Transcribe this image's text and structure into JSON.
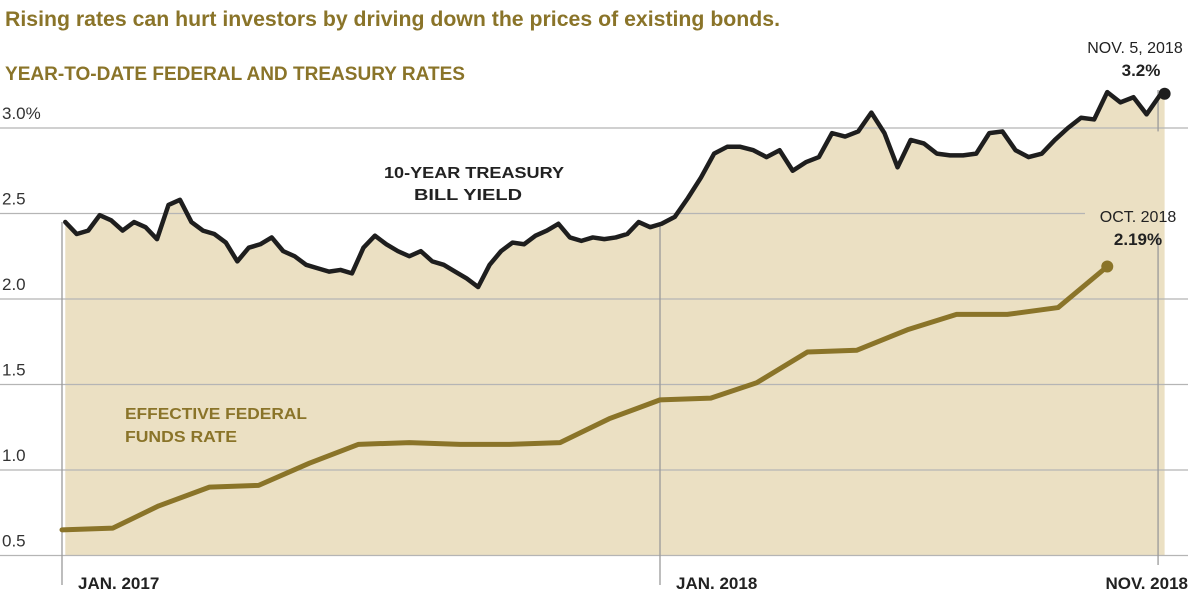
{
  "subtitle": "Rising rates can hurt investors by driving down the prices of existing bonds.",
  "chart_data": {
    "type": "line",
    "title": "YEAR-TO-DATE FEDERAL AND TREASURY RATES",
    "ylim": [
      0.5,
      3.3
    ],
    "yticks": [
      {
        "value": 3.0,
        "label": "3.0%"
      },
      {
        "value": 2.5,
        "label": "2.5"
      },
      {
        "value": 2.0,
        "label": "2.0"
      },
      {
        "value": 1.5,
        "label": "1.5"
      },
      {
        "value": 1.0,
        "label": "1.0"
      },
      {
        "value": 0.5,
        "label": "0.5"
      }
    ],
    "xticks": [
      {
        "date": "2017-01-01",
        "label": "JAN. 2017"
      },
      {
        "date": "2018-01-01",
        "label": "JAN. 2018"
      },
      {
        "date": "2018-11-01",
        "label": "NOV. 2018"
      }
    ],
    "grid": true,
    "colors": {
      "treasury": "#1e1e1e",
      "fed": "#8a7429",
      "fill": "#ebe0c3",
      "grid": "#b5b5b5"
    },
    "series": [
      {
        "name": "10-YEAR TREASURY BILL YIELD",
        "label_lines": [
          "10-YEAR TREASURY",
          "BILL YIELD"
        ],
        "filled": true,
        "dates": [
          "2017-01-03",
          "2017-01-10",
          "2017-01-17",
          "2017-01-24",
          "2017-01-31",
          "2017-02-07",
          "2017-02-14",
          "2017-02-21",
          "2017-02-28",
          "2017-03-07",
          "2017-03-14",
          "2017-03-21",
          "2017-03-28",
          "2017-04-04",
          "2017-04-11",
          "2017-04-18",
          "2017-04-25",
          "2017-05-02",
          "2017-05-09",
          "2017-05-16",
          "2017-05-23",
          "2017-05-30",
          "2017-06-06",
          "2017-06-13",
          "2017-06-20",
          "2017-06-27",
          "2017-07-04",
          "2017-07-11",
          "2017-07-18",
          "2017-07-25",
          "2017-08-01",
          "2017-08-08",
          "2017-08-15",
          "2017-08-22",
          "2017-08-29",
          "2017-09-05",
          "2017-09-12",
          "2017-09-19",
          "2017-09-26",
          "2017-10-03",
          "2017-10-10",
          "2017-10-17",
          "2017-10-24",
          "2017-10-31",
          "2017-11-07",
          "2017-11-14",
          "2017-11-21",
          "2017-11-28",
          "2017-12-05",
          "2017-12-12",
          "2017-12-19",
          "2017-12-26",
          "2018-01-02",
          "2018-01-10",
          "2018-01-18",
          "2018-01-26",
          "2018-02-03",
          "2018-02-11",
          "2018-02-19",
          "2018-02-27",
          "2018-03-07",
          "2018-03-15",
          "2018-03-23",
          "2018-03-31",
          "2018-04-08",
          "2018-04-16",
          "2018-04-24",
          "2018-05-02",
          "2018-05-10",
          "2018-05-18",
          "2018-05-26",
          "2018-06-03",
          "2018-06-11",
          "2018-06-19",
          "2018-06-27",
          "2018-07-05",
          "2018-07-13",
          "2018-07-21",
          "2018-07-29",
          "2018-08-06",
          "2018-08-14",
          "2018-08-22",
          "2018-08-30",
          "2018-09-07",
          "2018-09-15",
          "2018-09-23",
          "2018-10-01",
          "2018-10-09",
          "2018-10-17",
          "2018-10-25",
          "2018-11-02",
          "2018-11-05"
        ],
        "values": [
          2.45,
          2.38,
          2.4,
          2.49,
          2.46,
          2.4,
          2.45,
          2.42,
          2.35,
          2.55,
          2.58,
          2.45,
          2.4,
          2.38,
          2.33,
          2.22,
          2.3,
          2.32,
          2.36,
          2.28,
          2.25,
          2.2,
          2.18,
          2.16,
          2.17,
          2.15,
          2.3,
          2.37,
          2.32,
          2.28,
          2.25,
          2.28,
          2.22,
          2.2,
          2.16,
          2.12,
          2.07,
          2.2,
          2.28,
          2.33,
          2.32,
          2.37,
          2.4,
          2.44,
          2.36,
          2.34,
          2.36,
          2.35,
          2.36,
          2.38,
          2.45,
          2.42,
          2.44,
          2.48,
          2.59,
          2.71,
          2.85,
          2.89,
          2.89,
          2.87,
          2.83,
          2.87,
          2.75,
          2.8,
          2.83,
          2.97,
          2.95,
          2.98,
          3.09,
          2.97,
          2.77,
          2.93,
          2.91,
          2.85,
          2.84,
          2.84,
          2.85,
          2.97,
          2.98,
          2.87,
          2.83,
          2.85,
          2.93,
          3.0,
          3.06,
          3.05,
          3.21,
          3.15,
          3.18,
          3.08,
          3.19,
          3.2
        ],
        "end_annotation": {
          "date_label": "NOV. 5, 2018",
          "value_label": "3.2%"
        }
      },
      {
        "name": "EFFECTIVE FEDERAL FUNDS RATE",
        "label_lines": [
          "EFFECTIVE FEDERAL",
          "FUNDS RATE"
        ],
        "dates": [
          "2017-01-01",
          "2017-02-01",
          "2017-03-01",
          "2017-04-01",
          "2017-05-01",
          "2017-06-01",
          "2017-07-01",
          "2017-08-01",
          "2017-09-01",
          "2017-10-01",
          "2017-11-01",
          "2017-12-01",
          "2018-01-01",
          "2018-02-01",
          "2018-03-01",
          "2018-04-01",
          "2018-05-01",
          "2018-06-01",
          "2018-07-01",
          "2018-08-01",
          "2018-09-01",
          "2018-10-01"
        ],
        "values": [
          0.65,
          0.66,
          0.79,
          0.9,
          0.91,
          1.04,
          1.15,
          1.16,
          1.15,
          1.15,
          1.16,
          1.3,
          1.41,
          1.42,
          1.51,
          1.69,
          1.7,
          1.82,
          1.91,
          1.91,
          1.95,
          2.19
        ],
        "end_annotation": {
          "date_label": "OCT. 2018",
          "value_label": "2.19%"
        }
      }
    ]
  }
}
